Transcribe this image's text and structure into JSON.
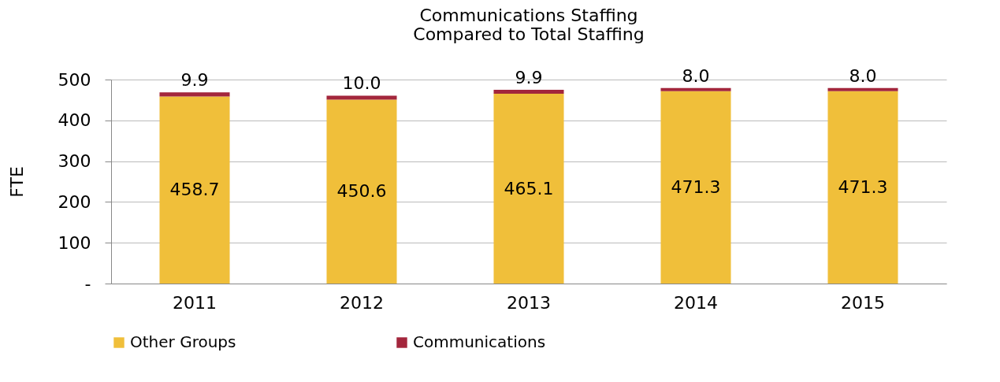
{
  "chart_data": {
    "type": "bar",
    "title": [
      "Communications Staffing",
      "Compared to Total Staffing"
    ],
    "ylabel": "FTE",
    "categories": [
      "2011",
      "2012",
      "2013",
      "2014",
      "2015"
    ],
    "series": [
      {
        "name": "Other Groups",
        "color": "#f0bf3a",
        "values": [
          458.7,
          450.6,
          465.1,
          471.3,
          471.3
        ],
        "value_labels": [
          "458.7",
          "450.6",
          "465.1",
          "471.3",
          "471.3"
        ]
      },
      {
        "name": "Communications",
        "color": "#a3263c",
        "values": [
          9.9,
          10.0,
          9.9,
          8.0,
          8.0
        ],
        "value_labels": [
          "9.9",
          "10.0",
          "9.9",
          "8.0",
          "8.0"
        ]
      }
    ],
    "stacked": true,
    "ylim": [
      0,
      500
    ],
    "yticks": [
      {
        "value": 0,
        "label": "-"
      },
      100,
      200,
      300,
      400,
      500
    ],
    "grid": "y",
    "legend": "bottom"
  }
}
